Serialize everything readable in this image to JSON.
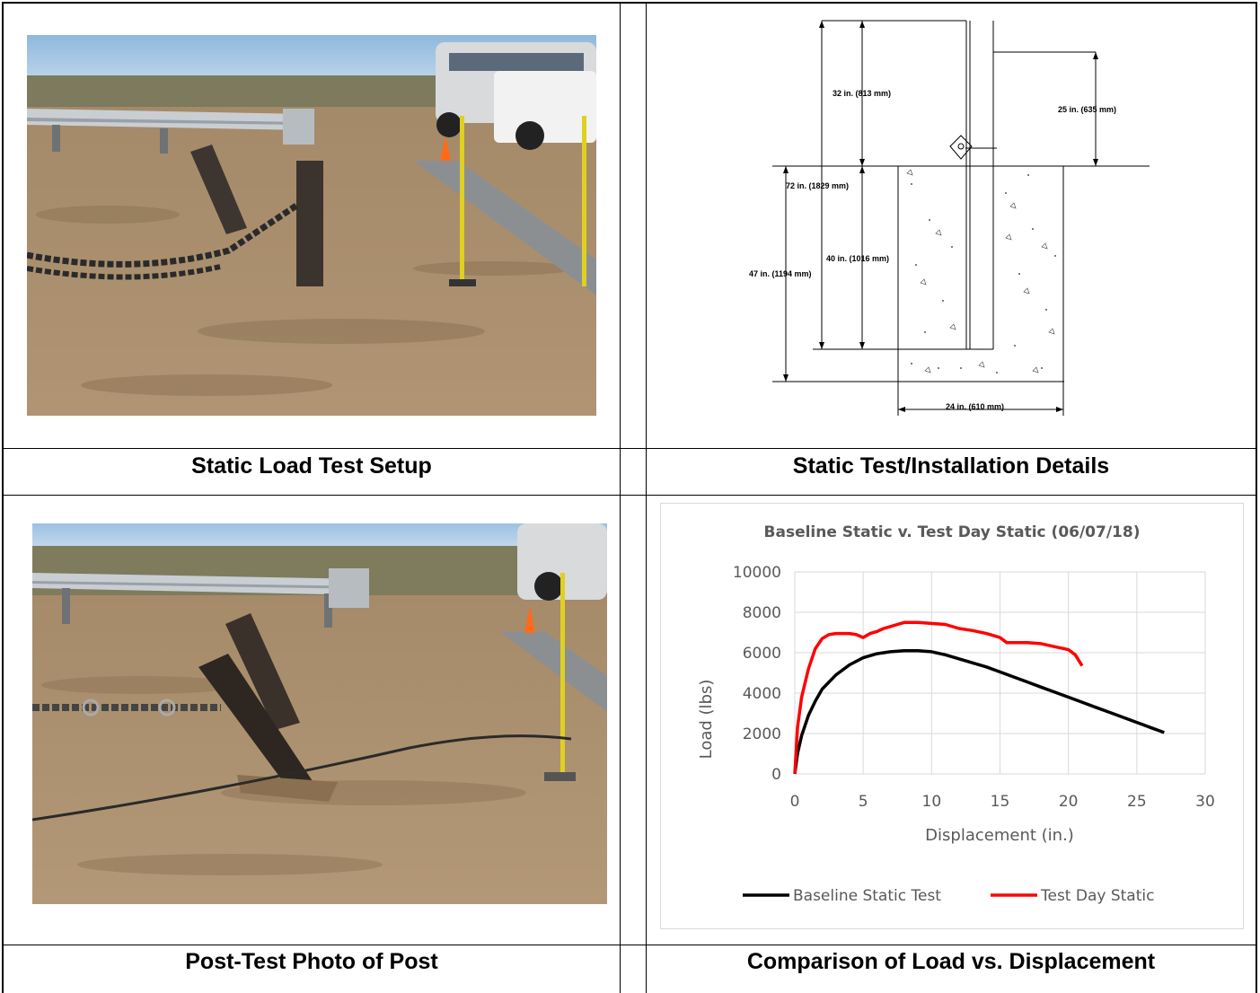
{
  "captions": {
    "top_left": "Static Load Test Setup",
    "top_right": "Static Test/Installation Details",
    "bottom_left": "Post-Test Photo of Post",
    "bottom_right": "Comparison of Load vs. Displacement"
  },
  "diagram": {
    "labels": {
      "d32": "32 in. (813 mm)",
      "d25": "25 in. (635 mm)",
      "d72": "72 in. (1829 mm)",
      "d40": "40 in. (1016 mm)",
      "d47": "47 in. (1194 mm)",
      "d24": "24 in. (610 mm)"
    }
  },
  "chart_data": {
    "type": "line",
    "title": "Baseline Static v. Test Day Static (06/07/18)",
    "xlabel": "Displacement (in.)",
    "ylabel": "Load (lbs)",
    "xlim": [
      0,
      30
    ],
    "ylim": [
      0,
      10000
    ],
    "xticks": [
      0,
      5,
      10,
      15,
      20,
      25,
      30
    ],
    "yticks": [
      0,
      2000,
      4000,
      6000,
      8000,
      10000
    ],
    "grid": true,
    "legend_position": "bottom",
    "series": [
      {
        "name": "Baseline Static Test",
        "color": "#000000",
        "x": [
          0,
          0.2,
          0.5,
          1,
          1.5,
          2,
          3,
          4,
          5,
          6,
          7,
          8,
          9,
          10,
          11,
          12,
          13,
          14,
          15,
          16,
          17,
          18,
          19,
          20,
          21,
          22,
          23,
          24,
          25,
          26,
          27
        ],
        "y": [
          0,
          1000,
          1900,
          2900,
          3600,
          4200,
          4900,
          5400,
          5750,
          5950,
          6050,
          6100,
          6100,
          6050,
          5900,
          5700,
          5500,
          5300,
          5050,
          4800,
          4550,
          4300,
          4050,
          3800,
          3550,
          3300,
          3050,
          2800,
          2550,
          2300,
          2050
        ]
      },
      {
        "name": "Test Day Static",
        "color": "#ff0000",
        "x": [
          0,
          0.2,
          0.5,
          1,
          1.5,
          2,
          2.5,
          3,
          3.5,
          4,
          4.5,
          5,
          5.5,
          6,
          6.5,
          7,
          7.5,
          8,
          8.5,
          9,
          10,
          11,
          12,
          13,
          14,
          15,
          15.5,
          16,
          17,
          18,
          19,
          20,
          20.5,
          21
        ],
        "y": [
          0,
          2300,
          3800,
          5200,
          6200,
          6700,
          6900,
          6950,
          6950,
          6950,
          6900,
          6750,
          6950,
          7050,
          7200,
          7300,
          7400,
          7500,
          7500,
          7500,
          7450,
          7400,
          7200,
          7100,
          6950,
          6750,
          6500,
          6500,
          6500,
          6450,
          6300,
          6150,
          5900,
          5350
        ]
      }
    ]
  }
}
